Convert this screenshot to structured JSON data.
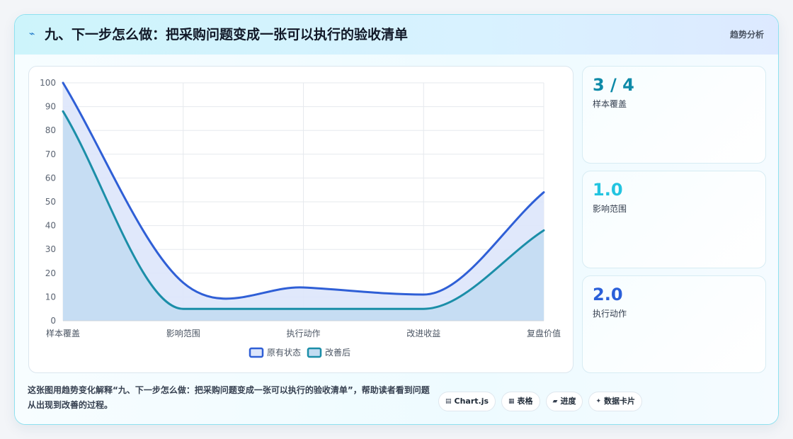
{
  "header": {
    "icon": "lightning-icon",
    "title": "九、下一步怎么做：把采购问题变成一张可以执行的验收清单",
    "tag": "趋势分析"
  },
  "stats": [
    {
      "value": "3 / 4",
      "label": "样本覆盖",
      "color": "#0e8aa8"
    },
    {
      "value": "1.0",
      "label": "影响范围",
      "color": "#22c4e0"
    },
    {
      "value": "2.0",
      "label": "执行动作",
      "color": "#2a5fd9"
    }
  ],
  "caption": "这张图用趋势变化解释“九、下一步怎么做：把采购问题变成一张可以执行的验收清单”，帮助读者看到问题从出现到改善的过程。",
  "chips": [
    {
      "icon": "chart-icon",
      "glyph": "▤",
      "label": "Chart.js"
    },
    {
      "icon": "table-icon",
      "glyph": "▦",
      "label": "表格"
    },
    {
      "icon": "progress-icon",
      "glyph": "▰",
      "label": "进度"
    },
    {
      "icon": "sparkle-icon",
      "glyph": "✦",
      "label": "数据卡片"
    }
  ],
  "chart_data": {
    "type": "line",
    "categories": [
      "样本覆盖",
      "影响范围",
      "执行动作",
      "改进收益",
      "复盘价值"
    ],
    "series": [
      {
        "name": "原有状态",
        "values": [
          100,
          16,
          14,
          11,
          54
        ],
        "color": "#2f5fd6",
        "fill": "#dde6fb"
      },
      {
        "name": "改善后",
        "values": [
          88,
          5,
          5,
          5,
          38
        ],
        "color": "#1b8ea8",
        "fill": "#c3dcf2"
      }
    ],
    "ylim": [
      0,
      100
    ],
    "yticks": [
      0,
      10,
      20,
      30,
      40,
      50,
      60,
      70,
      80,
      90,
      100
    ],
    "grid": true,
    "legend": "bottom"
  }
}
